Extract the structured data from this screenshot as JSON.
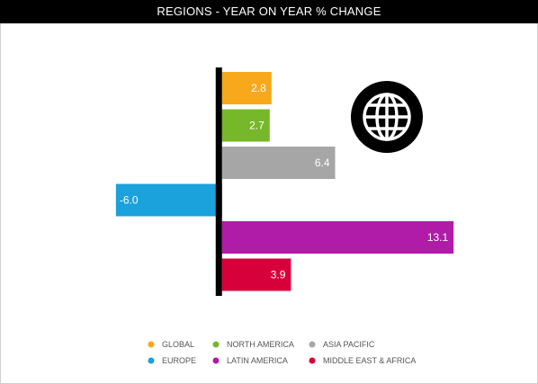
{
  "chart_data": {
    "type": "bar",
    "orientation": "horizontal",
    "title": "REGIONS - YEAR ON YEAR % CHANGE",
    "categories": [
      "GLOBAL",
      "NORTH AMERICA",
      "ASIA PACIFIC",
      "EUROPE",
      "LATIN AMERICA",
      "MIDDLE EAST & AFRICA"
    ],
    "values": [
      2.8,
      2.7,
      6.4,
      -6.0,
      13.1,
      3.9
    ],
    "data_labels": [
      "2.8",
      "2.7",
      "6.4",
      "-6.0",
      "13.1",
      "3.9"
    ],
    "colors": [
      "#f7a81b",
      "#76b82a",
      "#a6a6a6",
      "#1ba1dc",
      "#b01ca8",
      "#d8003a"
    ],
    "xlim": [
      -6.4,
      13.6
    ],
    "grid": false,
    "legend_placement": "bottom",
    "icon": "globe-icon"
  }
}
